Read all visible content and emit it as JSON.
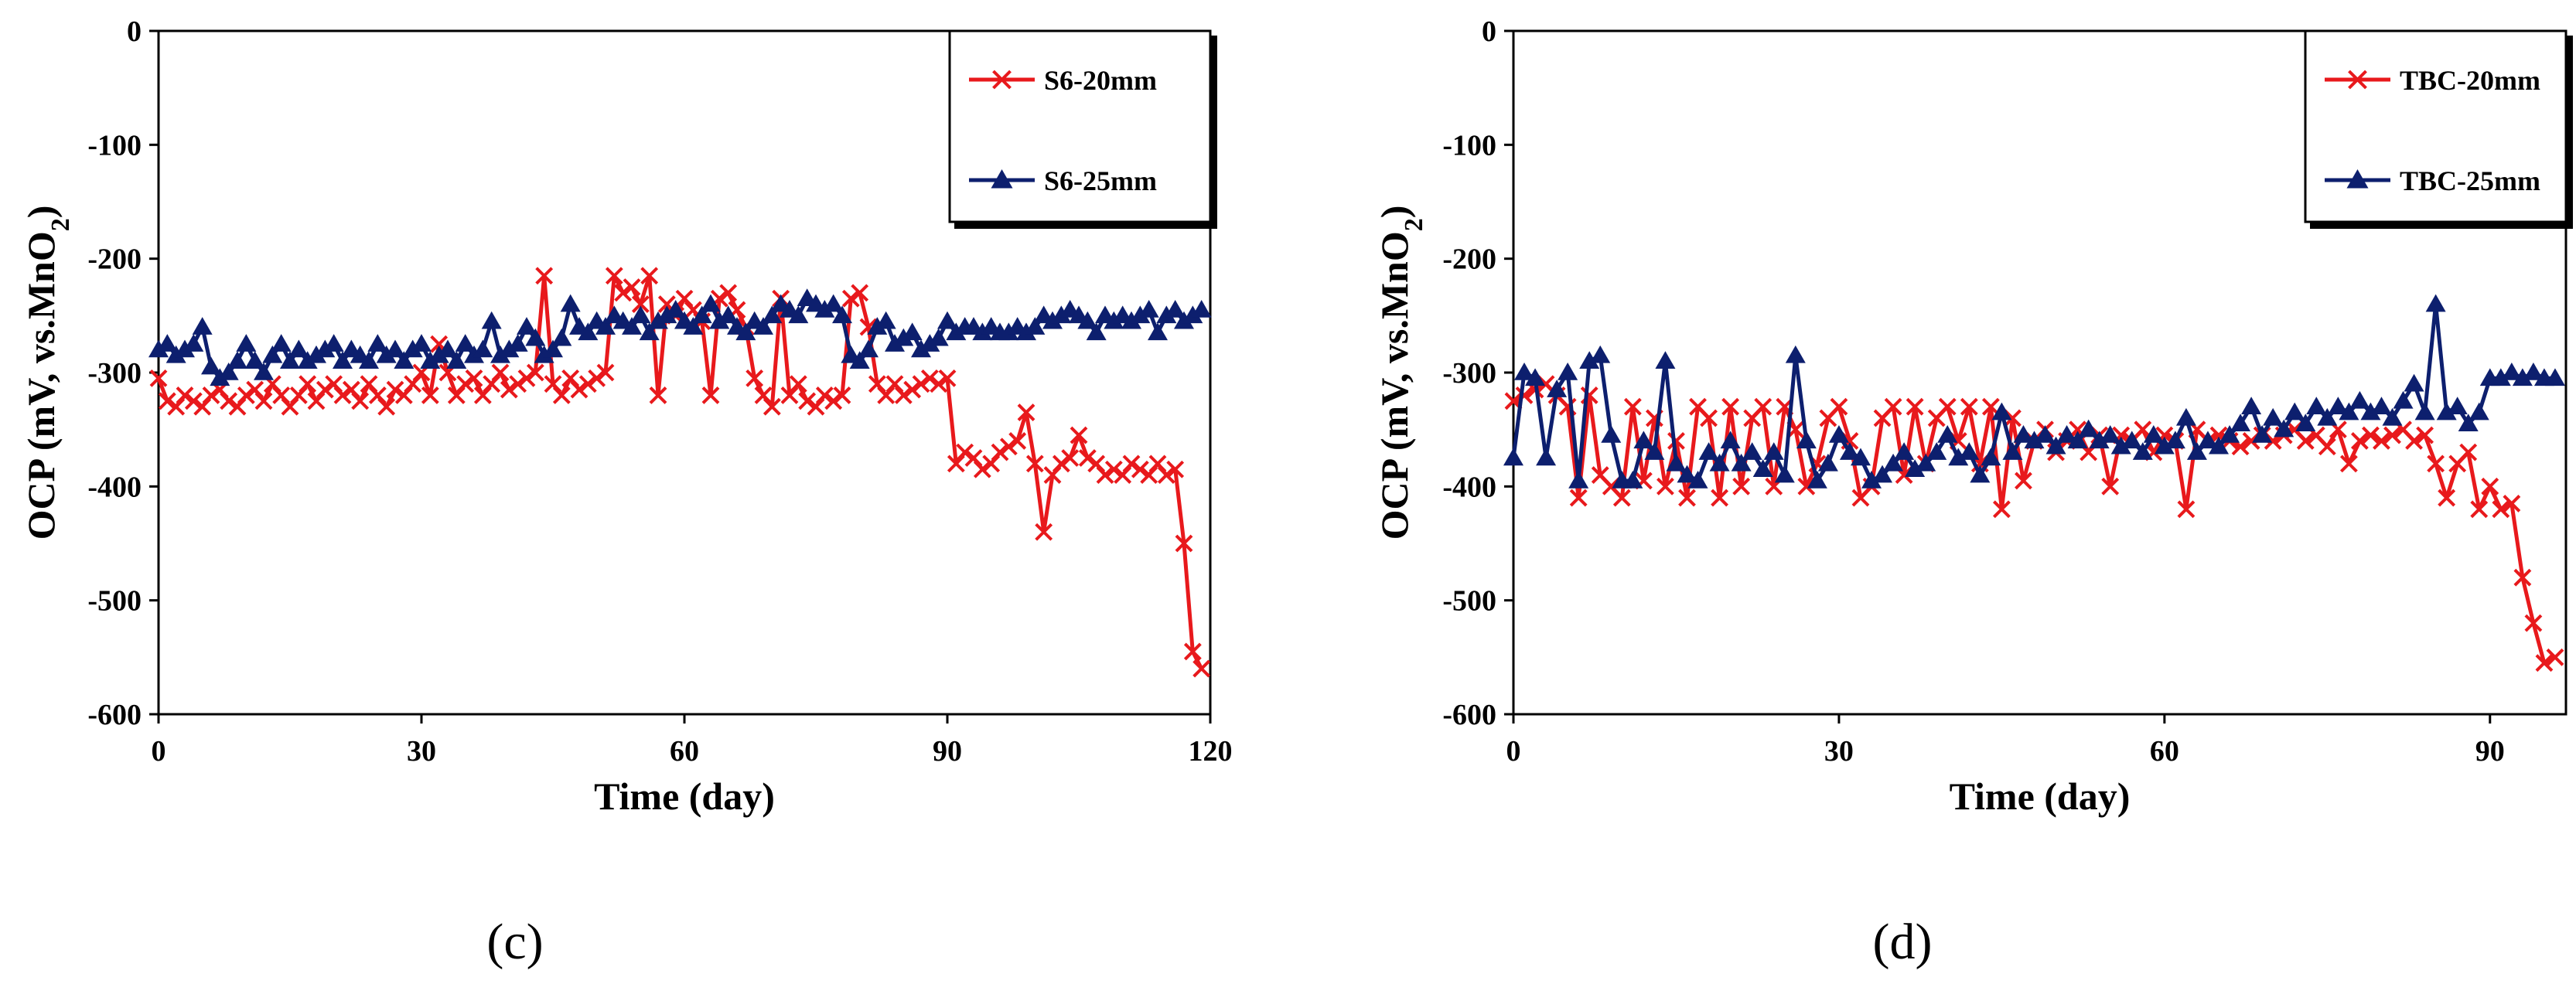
{
  "chart_data": [
    {
      "type": "line",
      "panel_label": "(c)",
      "xlabel": "Time (day)",
      "ylabel": "OCP (mV, vs.MnO",
      "ylabel_subscript": "2",
      "ylabel_suffix": ")",
      "xlim": [
        0,
        120
      ],
      "ylim": [
        -600,
        0
      ],
      "xticks": [
        0,
        30,
        60,
        90,
        120
      ],
      "yticks": [
        0,
        -100,
        -200,
        -300,
        -400,
        -500,
        -600
      ],
      "grid": false,
      "legend_position": "top-right",
      "series": [
        {
          "name": "S6-20mm",
          "color": "#e8191c",
          "marker": "x",
          "x": [
            0,
            1,
            2,
            3,
            4,
            5,
            6,
            7,
            8,
            9,
            10,
            11,
            12,
            13,
            14,
            15,
            16,
            17,
            18,
            19,
            20,
            21,
            22,
            23,
            24,
            25,
            26,
            27,
            28,
            29,
            30,
            31,
            32,
            33,
            34,
            35,
            36,
            37,
            38,
            39,
            40,
            41,
            42,
            43,
            44,
            45,
            46,
            47,
            48,
            49,
            50,
            51,
            52,
            53,
            54,
            55,
            56,
            57,
            58,
            59,
            60,
            61,
            62,
            63,
            64,
            65,
            66,
            67,
            68,
            69,
            70,
            71,
            72,
            73,
            74,
            75,
            76,
            77,
            78,
            79,
            80,
            81,
            82,
            83,
            84,
            85,
            86,
            87,
            88,
            89,
            90,
            91,
            92,
            93,
            94,
            95,
            96,
            97,
            98,
            99,
            100,
            101,
            102,
            103,
            104,
            105,
            106,
            107,
            108,
            109,
            110,
            111,
            112,
            113,
            114,
            115,
            116,
            117,
            118,
            119
          ],
          "y": [
            -305,
            -325,
            -330,
            -320,
            -325,
            -330,
            -320,
            -315,
            -325,
            -330,
            -320,
            -315,
            -325,
            -310,
            -320,
            -330,
            -320,
            -310,
            -325,
            -315,
            -310,
            -320,
            -315,
            -325,
            -310,
            -320,
            -330,
            -315,
            -320,
            -310,
            -300,
            -320,
            -275,
            -300,
            -320,
            -310,
            -305,
            -320,
            -310,
            -300,
            -315,
            -310,
            -305,
            -300,
            -215,
            -310,
            -320,
            -305,
            -315,
            -310,
            -305,
            -300,
            -215,
            -230,
            -225,
            -240,
            -215,
            -320,
            -240,
            -250,
            -235,
            -245,
            -255,
            -320,
            -235,
            -230,
            -245,
            -260,
            -305,
            -320,
            -330,
            -235,
            -320,
            -310,
            -325,
            -330,
            -320,
            -325,
            -320,
            -235,
            -230,
            -260,
            -310,
            -320,
            -310,
            -320,
            -315,
            -310,
            -305,
            -310,
            -305,
            -380,
            -370,
            -375,
            -385,
            -380,
            -370,
            -365,
            -360,
            -335,
            -380,
            -440,
            -390,
            -380,
            -375,
            -355,
            -375,
            -380,
            -390,
            -385,
            -390,
            -380,
            -385,
            -390,
            -380,
            -390,
            -385,
            -450,
            -545,
            -560
          ]
        },
        {
          "name": "S6-25mm",
          "color": "#0d1f6e",
          "marker": "triangle",
          "x": [
            0,
            1,
            2,
            3,
            4,
            5,
            6,
            7,
            8,
            9,
            10,
            11,
            12,
            13,
            14,
            15,
            16,
            17,
            18,
            19,
            20,
            21,
            22,
            23,
            24,
            25,
            26,
            27,
            28,
            29,
            30,
            31,
            32,
            33,
            34,
            35,
            36,
            37,
            38,
            39,
            40,
            41,
            42,
            43,
            44,
            45,
            46,
            47,
            48,
            49,
            50,
            51,
            52,
            53,
            54,
            55,
            56,
            57,
            58,
            59,
            60,
            61,
            62,
            63,
            64,
            65,
            66,
            67,
            68,
            69,
            70,
            71,
            72,
            73,
            74,
            75,
            76,
            77,
            78,
            79,
            80,
            81,
            82,
            83,
            84,
            85,
            86,
            87,
            88,
            89,
            90,
            91,
            92,
            93,
            94,
            95,
            96,
            97,
            98,
            99,
            100,
            101,
            102,
            103,
            104,
            105,
            106,
            107,
            108,
            109,
            110,
            111,
            112,
            113,
            114,
            115,
            116,
            117,
            118,
            119
          ],
          "y": [
            -280,
            -275,
            -285,
            -280,
            -275,
            -260,
            -295,
            -305,
            -300,
            -290,
            -275,
            -290,
            -300,
            -285,
            -275,
            -290,
            -280,
            -290,
            -285,
            -280,
            -275,
            -290,
            -280,
            -285,
            -290,
            -275,
            -285,
            -280,
            -290,
            -280,
            -275,
            -290,
            -285,
            -280,
            -290,
            -275,
            -285,
            -280,
            -255,
            -285,
            -280,
            -275,
            -260,
            -270,
            -285,
            -280,
            -270,
            -240,
            -260,
            -265,
            -255,
            -260,
            -250,
            -255,
            -260,
            -250,
            -265,
            -255,
            -250,
            -245,
            -255,
            -260,
            -250,
            -240,
            -255,
            -250,
            -260,
            -265,
            -255,
            -260,
            -250,
            -240,
            -245,
            -250,
            -235,
            -240,
            -245,
            -240,
            -250,
            -285,
            -290,
            -280,
            -260,
            -255,
            -275,
            -270,
            -265,
            -280,
            -275,
            -270,
            -255,
            -265,
            -260,
            -260,
            -265,
            -260,
            -265,
            -265,
            -260,
            -265,
            -260,
            -250,
            -255,
            -250,
            -245,
            -250,
            -255,
            -265,
            -250,
            -255,
            -250,
            -255,
            -250,
            -245,
            -265,
            -250,
            -245,
            -255,
            -250,
            -245
          ]
        }
      ]
    },
    {
      "type": "line",
      "panel_label": "(d)",
      "xlabel": "Time (day)",
      "ylabel": "OCP (mV, vs.MnO",
      "ylabel_subscript": "2",
      "ylabel_suffix": ")",
      "xlim": [
        0,
        97
      ],
      "ylim": [
        -600,
        0
      ],
      "xticks": [
        0,
        30,
        60,
        90
      ],
      "yticks": [
        0,
        -100,
        -200,
        -300,
        -400,
        -500,
        -600
      ],
      "grid": false,
      "legend_position": "top-right",
      "series": [
        {
          "name": "TBC-20mm",
          "color": "#e8191c",
          "marker": "x",
          "x": [
            0,
            1,
            2,
            3,
            4,
            5,
            6,
            7,
            8,
            9,
            10,
            11,
            12,
            13,
            14,
            15,
            16,
            17,
            18,
            19,
            20,
            21,
            22,
            23,
            24,
            25,
            26,
            27,
            28,
            29,
            30,
            31,
            32,
            33,
            34,
            35,
            36,
            37,
            38,
            39,
            40,
            41,
            42,
            43,
            44,
            45,
            46,
            47,
            48,
            49,
            50,
            51,
            52,
            53,
            54,
            55,
            56,
            57,
            58,
            59,
            60,
            61,
            62,
            63,
            64,
            65,
            66,
            67,
            68,
            69,
            70,
            71,
            72,
            73,
            74,
            75,
            76,
            77,
            78,
            79,
            80,
            81,
            82,
            83,
            84,
            85,
            86,
            87,
            88,
            89,
            90,
            91,
            92,
            93,
            94,
            95,
            96
          ],
          "y": [
            -325,
            -320,
            -315,
            -310,
            -320,
            -330,
            -410,
            -320,
            -390,
            -400,
            -410,
            -330,
            -395,
            -340,
            -400,
            -360,
            -410,
            -330,
            -340,
            -410,
            -330,
            -400,
            -340,
            -330,
            -400,
            -330,
            -350,
            -400,
            -380,
            -340,
            -330,
            -360,
            -410,
            -400,
            -340,
            -330,
            -390,
            -330,
            -380,
            -340,
            -330,
            -360,
            -330,
            -380,
            -330,
            -420,
            -340,
            -395,
            -360,
            -350,
            -370,
            -360,
            -350,
            -370,
            -355,
            -400,
            -355,
            -360,
            -350,
            -370,
            -355,
            -360,
            -420,
            -350,
            -360,
            -355,
            -360,
            -365,
            -360,
            -355,
            -360,
            -355,
            -350,
            -360,
            -355,
            -365,
            -350,
            -380,
            -360,
            -355,
            -360,
            -355,
            -350,
            -360,
            -355,
            -380,
            -410,
            -380,
            -370,
            -420,
            -400,
            -420,
            -415,
            -480,
            -520,
            -555,
            -550
          ]
        },
        {
          "name": "TBC-25mm",
          "color": "#0d1f6e",
          "marker": "triangle",
          "x": [
            0,
            1,
            2,
            3,
            4,
            5,
            6,
            7,
            8,
            9,
            10,
            11,
            12,
            13,
            14,
            15,
            16,
            17,
            18,
            19,
            20,
            21,
            22,
            23,
            24,
            25,
            26,
            27,
            28,
            29,
            30,
            31,
            32,
            33,
            34,
            35,
            36,
            37,
            38,
            39,
            40,
            41,
            42,
            43,
            44,
            45,
            46,
            47,
            48,
            49,
            50,
            51,
            52,
            53,
            54,
            55,
            56,
            57,
            58,
            59,
            60,
            61,
            62,
            63,
            64,
            65,
            66,
            67,
            68,
            69,
            70,
            71,
            72,
            73,
            74,
            75,
            76,
            77,
            78,
            79,
            80,
            81,
            82,
            83,
            84,
            85,
            86,
            87,
            88,
            89,
            90,
            91,
            92,
            93,
            94,
            95,
            96
          ],
          "y": [
            -375,
            -300,
            -305,
            -375,
            -315,
            -300,
            -395,
            -290,
            -285,
            -355,
            -395,
            -395,
            -360,
            -370,
            -290,
            -380,
            -390,
            -395,
            -370,
            -380,
            -360,
            -380,
            -370,
            -385,
            -370,
            -390,
            -285,
            -360,
            -395,
            -380,
            -355,
            -370,
            -375,
            -395,
            -390,
            -380,
            -370,
            -385,
            -380,
            -370,
            -355,
            -375,
            -370,
            -390,
            -375,
            -335,
            -370,
            -355,
            -360,
            -355,
            -365,
            -355,
            -360,
            -350,
            -360,
            -355,
            -365,
            -360,
            -370,
            -355,
            -365,
            -360,
            -340,
            -370,
            -360,
            -365,
            -355,
            -345,
            -330,
            -355,
            -340,
            -350,
            -335,
            -345,
            -330,
            -340,
            -330,
            -335,
            -325,
            -335,
            -330,
            -340,
            -325,
            -310,
            -335,
            -240,
            -335,
            -330,
            -345,
            -335,
            -305,
            -305,
            -300,
            -305,
            -300,
            -305,
            -305
          ]
        }
      ]
    }
  ]
}
